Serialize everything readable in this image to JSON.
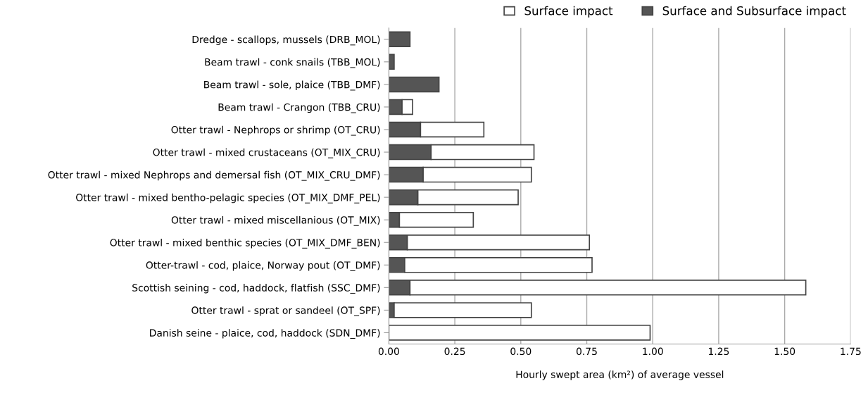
{
  "chart_data": {
    "type": "bar",
    "orientation": "horizontal",
    "stacked": true,
    "xlabel": "Hourly swept area (km²) of average vessel",
    "categories": [
      "Dredge - scallops, mussels (DRB_MOL)",
      "Beam trawl - conk snails (TBB_MOL)",
      "Beam trawl - sole, plaice (TBB_DMF)",
      "Beam trawl - Crangon (TBB_CRU)",
      "Otter trawl - Nephrops or shrimp (OT_CRU)",
      "Otter trawl - mixed crustaceans (OT_MIX_CRU)",
      "Otter trawl - mixed Nephrops and demersal fish (OT_MIX_CRU_DMF)",
      "Otter trawl - mixed bentho-pelagic species (OT_MIX_DMF_PEL)",
      "Otter trawl - mixed miscellanious (OT_MIX)",
      "Otter trawl - mixed benthic species (OT_MIX_DMF_BEN)",
      "Otter-trawl - cod, plaice, Norway pout (OT_DMF)",
      "Scottish seining - cod, haddock, flatfish (SSC_DMF)",
      "Otter trawl - sprat or sandeel (OT_SPF)",
      "Danish seine - plaice, cod, haddock (SDN_DMF)"
    ],
    "series": [
      {
        "name": "Surface and Subsurface impact",
        "color": "#555555",
        "values": [
          0.08,
          0.02,
          0.19,
          0.05,
          0.12,
          0.16,
          0.13,
          0.11,
          0.04,
          0.07,
          0.06,
          0.08,
          0.02,
          0
        ]
      },
      {
        "name": "Surface impact",
        "color": "#ffffff",
        "values": [
          null,
          null,
          null,
          0.04,
          0.24,
          0.39,
          0.41,
          0.38,
          0.28,
          0.69,
          0.71,
          1.5,
          0.52,
          0.99
        ]
      }
    ],
    "xlim": [
      0,
      1.75
    ],
    "xticks": [
      {
        "value": 0,
        "label": "0.00"
      },
      {
        "value": 0.25,
        "label": "0.25"
      },
      {
        "value": 0.5,
        "label": "0.50"
      },
      {
        "value": 0.75,
        "label": "0.75"
      },
      {
        "value": 1,
        "label": "1.00"
      },
      {
        "value": 1.25,
        "label": "1.25"
      },
      {
        "value": 1.5,
        "label": "1.50"
      },
      {
        "value": 1.75,
        "label": "1.75"
      }
    ],
    "grid": "x",
    "legend": "top"
  }
}
